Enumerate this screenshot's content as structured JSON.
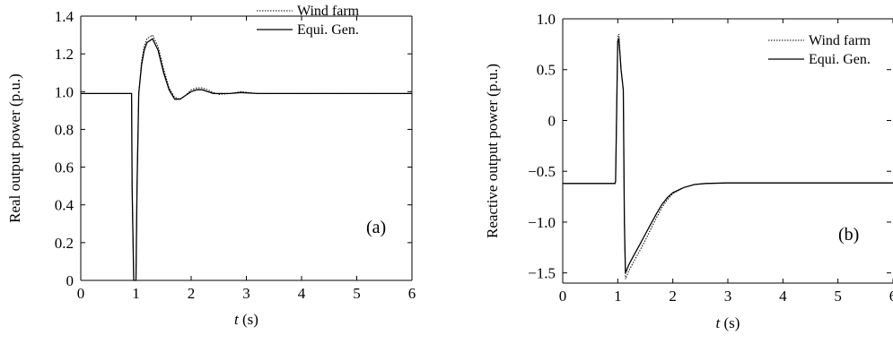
{
  "chart_data": [
    {
      "type": "line",
      "panel_label": "(a)",
      "xlabel_italic": "t",
      "xlabel_unit": " (s)",
      "ylabel": "Real output power (p.u.)",
      "xlim": [
        0,
        6
      ],
      "ylim": [
        0,
        1.4
      ],
      "xticks": [
        0,
        1,
        2,
        3,
        4,
        5,
        6
      ],
      "xtick_labels": [
        "0",
        "1",
        "2",
        "3",
        "4",
        "5",
        "6"
      ],
      "yticks": [
        0,
        0.2,
        0.4,
        0.6,
        0.8,
        1.0,
        1.2,
        1.4
      ],
      "ytick_labels": [
        "0",
        "0.2",
        "0.4",
        "0.6",
        "0.8",
        "1.0",
        "1.2",
        "1.4"
      ],
      "legend": [
        "Wind farm",
        "Equi. Gen."
      ],
      "series": [
        {
          "name": "Wind farm",
          "style": "dotted",
          "x": [
            0,
            0.92,
            0.93,
            0.96,
            0.97,
            1.0,
            1.02,
            1.05,
            1.1,
            1.15,
            1.2,
            1.3,
            1.4,
            1.5,
            1.6,
            1.7,
            1.8,
            1.9,
            2.0,
            2.1,
            2.2,
            2.3,
            2.4,
            2.5,
            2.7,
            2.9,
            3.2,
            3.6,
            4.0,
            6.0
          ],
          "y": [
            0.99,
            0.99,
            0.5,
            0.0,
            0.0,
            0.0,
            0.5,
            0.99,
            1.16,
            1.24,
            1.28,
            1.3,
            1.24,
            1.12,
            1.02,
            0.97,
            0.96,
            0.98,
            1.01,
            1.02,
            1.02,
            1.01,
            0.995,
            0.985,
            0.99,
            1.0,
            0.99,
            0.99,
            0.99,
            0.99
          ]
        },
        {
          "name": "Equi. Gen.",
          "style": "solid",
          "x": [
            0,
            0.92,
            0.93,
            0.96,
            0.97,
            1.0,
            1.02,
            1.05,
            1.1,
            1.15,
            1.2,
            1.3,
            1.4,
            1.5,
            1.6,
            1.7,
            1.8,
            1.9,
            2.0,
            2.1,
            2.2,
            2.3,
            2.4,
            2.5,
            2.7,
            2.9,
            3.2,
            3.6,
            4.0,
            6.0
          ],
          "y": [
            0.99,
            0.99,
            0.5,
            0.0,
            0.0,
            0.0,
            0.5,
            0.99,
            1.14,
            1.22,
            1.26,
            1.28,
            1.22,
            1.1,
            1.01,
            0.96,
            0.96,
            0.98,
            1.0,
            1.01,
            1.01,
            1.0,
            0.99,
            0.99,
            0.99,
            0.995,
            0.99,
            0.99,
            0.99,
            0.99
          ]
        }
      ]
    },
    {
      "type": "line",
      "panel_label": "(b)",
      "xlabel_italic": "t",
      "xlabel_unit": " (s)",
      "ylabel": "Reactive output power (p.u.)",
      "xlim": [
        0,
        6
      ],
      "ylim": [
        -1.6,
        1.0
      ],
      "xticks": [
        0,
        1,
        2,
        3,
        4,
        5,
        6
      ],
      "xtick_labels": [
        "0",
        "1",
        "2",
        "3",
        "4",
        "5",
        "6"
      ],
      "yticks": [
        -1.5,
        -1.0,
        -0.5,
        0,
        0.5,
        1.0
      ],
      "ytick_labels": [
        "−1.5",
        "−1.0",
        "−0.5",
        "0",
        "0.5",
        "1.0"
      ],
      "legend": [
        "Wind farm",
        "Equi. Gen."
      ],
      "series": [
        {
          "name": "Wind farm",
          "style": "dotted",
          "x": [
            0,
            0.95,
            0.96,
            1.0,
            1.02,
            1.06,
            1.1,
            1.12,
            1.14,
            1.2,
            1.3,
            1.4,
            1.5,
            1.6,
            1.7,
            1.8,
            1.9,
            2.0,
            2.2,
            2.4,
            2.6,
            3.0,
            3.5,
            4.0,
            6.0
          ],
          "y": [
            -0.62,
            -0.62,
            -0.6,
            0.82,
            0.85,
            0.5,
            0.3,
            -1.0,
            -1.56,
            -1.48,
            -1.38,
            -1.28,
            -1.18,
            -1.07,
            -0.96,
            -0.86,
            -0.78,
            -0.72,
            -0.66,
            -0.63,
            -0.62,
            -0.615,
            -0.615,
            -0.615,
            -0.615
          ]
        },
        {
          "name": "Equi. Gen.",
          "style": "solid",
          "x": [
            0,
            0.95,
            0.96,
            1.0,
            1.02,
            1.06,
            1.1,
            1.12,
            1.14,
            1.2,
            1.3,
            1.4,
            1.5,
            1.6,
            1.7,
            1.8,
            1.9,
            2.0,
            2.2,
            2.4,
            2.6,
            3.0,
            3.5,
            4.0,
            6.0
          ],
          "y": [
            -0.62,
            -0.62,
            -0.6,
            0.78,
            0.8,
            0.5,
            0.3,
            -1.0,
            -1.5,
            -1.42,
            -1.32,
            -1.22,
            -1.12,
            -1.02,
            -0.92,
            -0.83,
            -0.76,
            -0.71,
            -0.66,
            -0.63,
            -0.62,
            -0.615,
            -0.615,
            -0.615,
            -0.615
          ]
        }
      ]
    }
  ]
}
